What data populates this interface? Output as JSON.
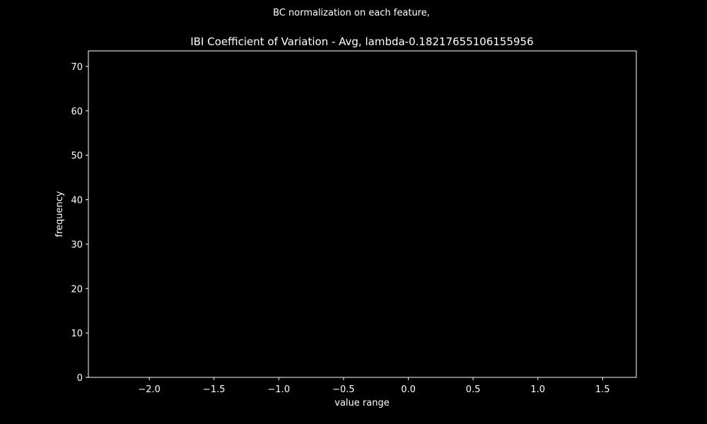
{
  "chart_data": {
    "type": "bar",
    "suptitle": "BC normalization on each feature,",
    "title": "IBI Coefficient of Variation - Avg, lambda-0.18217655106155956",
    "xlabel": "value range",
    "ylabel": "frequency",
    "xlim": [
      -2.47,
      1.76
    ],
    "ylim": [
      0,
      73.5
    ],
    "xticks": [
      -2.0,
      -1.5,
      -1.0,
      -0.5,
      0.0,
      0.5,
      1.0,
      1.5
    ],
    "xtick_labels": [
      "−2.0",
      "−1.5",
      "−1.0",
      "−0.5",
      "0.0",
      "0.5",
      "1.0",
      "1.5"
    ],
    "yticks": [
      0,
      10,
      20,
      30,
      40,
      50,
      60,
      70
    ],
    "ytick_labels": [
      "0",
      "10",
      "20",
      "30",
      "40",
      "50",
      "60",
      "70"
    ],
    "grid": false,
    "series": [],
    "colors": {
      "background": "#000000",
      "foreground": "#ffffff"
    }
  }
}
